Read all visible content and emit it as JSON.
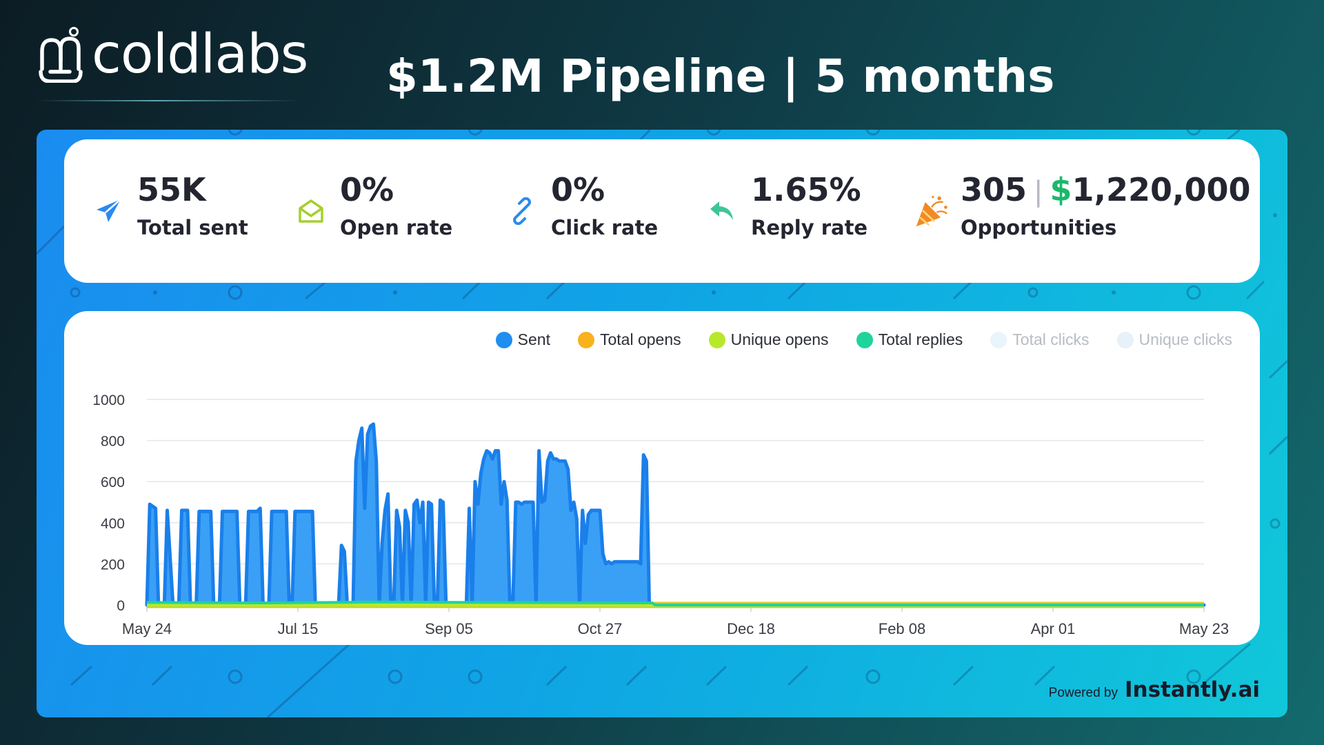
{
  "brand": {
    "name": "coldlabs",
    "icon": "coldlabs-logo-icon"
  },
  "headline": "$1.2M Pipeline | 5 months",
  "stats": [
    {
      "value": "55K",
      "label": "Total sent",
      "icon": "paper-plane-icon",
      "color": "#2a8af0"
    },
    {
      "value": "0%",
      "label": "Open rate",
      "icon": "envelope-open-icon",
      "color": "#a5cf2e"
    },
    {
      "value": "0%",
      "label": "Click rate",
      "icon": "link-icon",
      "color": "#2a8af0"
    },
    {
      "value": "1.65%",
      "label": "Reply rate",
      "icon": "reply-arrow-icon",
      "color": "#3ec59a"
    },
    {
      "value": "305",
      "amount_sign": "$",
      "amount": "1,220,000",
      "label": "Opportunities",
      "icon": "party-popper-icon",
      "color": "#f08a24"
    }
  ],
  "legend": [
    {
      "label": "Sent",
      "color": "#1f8ef1",
      "muted": false
    },
    {
      "label": "Total opens",
      "color": "#f8b21c",
      "muted": false
    },
    {
      "label": "Unique opens",
      "color": "#b8e82a",
      "muted": false
    },
    {
      "label": "Total replies",
      "color": "#1fd49a",
      "muted": false
    },
    {
      "label": "Total clicks",
      "color": "#eaf4fb",
      "muted": true
    },
    {
      "label": "Unique clicks",
      "color": "#e6f1f9",
      "muted": true
    }
  ],
  "chart_data": {
    "type": "area",
    "x_tick_labels": [
      "May 24",
      "Jul 15",
      "Sep 05",
      "Oct 27",
      "Dec 18",
      "Feb 08",
      "Apr 01",
      "May 23"
    ],
    "y_ticks": [
      0,
      200,
      400,
      600,
      800,
      1000
    ],
    "ylim": [
      0,
      1000
    ],
    "x_range_days": [
      0,
      364
    ],
    "grid": true,
    "legend_position": "top-right",
    "series": [
      {
        "name": "Sent",
        "color": "#1f8ef1",
        "points": [
          [
            0,
            0
          ],
          [
            1,
            490
          ],
          [
            3,
            470
          ],
          [
            4,
            0
          ],
          [
            6,
            0
          ],
          [
            7,
            460
          ],
          [
            9,
            0
          ],
          [
            11,
            0
          ],
          [
            12,
            460
          ],
          [
            14,
            460
          ],
          [
            15,
            0
          ],
          [
            17,
            0
          ],
          [
            18,
            455
          ],
          [
            22,
            455
          ],
          [
            23,
            0
          ],
          [
            25,
            0
          ],
          [
            26,
            455
          ],
          [
            31,
            455
          ],
          [
            32,
            0
          ],
          [
            34,
            0
          ],
          [
            35,
            455
          ],
          [
            38,
            455
          ],
          [
            39,
            470
          ],
          [
            40,
            0
          ],
          [
            42,
            0
          ],
          [
            43,
            455
          ],
          [
            48,
            455
          ],
          [
            49,
            0
          ],
          [
            50,
            0
          ],
          [
            51,
            455
          ],
          [
            56,
            455
          ],
          [
            57,
            455
          ],
          [
            58,
            0
          ],
          [
            59,
            0
          ],
          [
            60,
            0
          ],
          [
            61,
            0
          ],
          [
            62,
            0
          ],
          [
            63,
            0
          ],
          [
            64,
            0
          ],
          [
            65,
            0
          ],
          [
            66,
            0
          ],
          [
            67,
            290
          ],
          [
            68,
            260
          ],
          [
            69,
            0
          ],
          [
            70,
            0
          ],
          [
            71,
            0
          ],
          [
            72,
            700
          ],
          [
            73,
            800
          ],
          [
            74,
            860
          ],
          [
            75,
            470
          ],
          [
            76,
            830
          ],
          [
            77,
            870
          ],
          [
            78,
            880
          ],
          [
            79,
            700
          ],
          [
            80,
            0
          ],
          [
            81,
            300
          ],
          [
            82,
            460
          ],
          [
            83,
            540
          ],
          [
            84,
            0
          ],
          [
            85,
            0
          ],
          [
            86,
            460
          ],
          [
            87,
            380
          ],
          [
            88,
            0
          ],
          [
            89,
            460
          ],
          [
            90,
            400
          ],
          [
            91,
            0
          ],
          [
            92,
            490
          ],
          [
            93,
            510
          ],
          [
            94,
            400
          ],
          [
            95,
            500
          ],
          [
            96,
            0
          ],
          [
            97,
            500
          ],
          [
            98,
            490
          ],
          [
            99,
            0
          ],
          [
            100,
            0
          ],
          [
            101,
            510
          ],
          [
            102,
            500
          ],
          [
            103,
            0
          ],
          [
            104,
            0
          ],
          [
            105,
            0
          ],
          [
            106,
            0
          ],
          [
            107,
            0
          ],
          [
            108,
            0
          ],
          [
            109,
            0
          ],
          [
            110,
            0
          ],
          [
            111,
            470
          ],
          [
            112,
            0
          ],
          [
            113,
            600
          ],
          [
            114,
            490
          ],
          [
            115,
            640
          ],
          [
            116,
            710
          ],
          [
            117,
            750
          ],
          [
            118,
            740
          ],
          [
            119,
            710
          ],
          [
            120,
            750
          ],
          [
            121,
            750
          ],
          [
            122,
            490
          ],
          [
            123,
            600
          ],
          [
            124,
            510
          ],
          [
            125,
            0
          ],
          [
            126,
            0
          ],
          [
            127,
            500
          ],
          [
            128,
            500
          ],
          [
            129,
            490
          ],
          [
            130,
            500
          ],
          [
            131,
            500
          ],
          [
            132,
            500
          ],
          [
            133,
            500
          ],
          [
            134,
            0
          ],
          [
            135,
            750
          ],
          [
            136,
            500
          ],
          [
            137,
            510
          ],
          [
            138,
            700
          ],
          [
            139,
            740
          ],
          [
            140,
            710
          ],
          [
            141,
            710
          ],
          [
            142,
            700
          ],
          [
            143,
            700
          ],
          [
            144,
            700
          ],
          [
            145,
            660
          ],
          [
            146,
            460
          ],
          [
            147,
            500
          ],
          [
            148,
            420
          ],
          [
            149,
            0
          ],
          [
            150,
            460
          ],
          [
            151,
            300
          ],
          [
            152,
            440
          ],
          [
            153,
            460
          ],
          [
            154,
            460
          ],
          [
            155,
            460
          ],
          [
            156,
            460
          ],
          [
            157,
            250
          ],
          [
            158,
            200
          ],
          [
            159,
            210
          ],
          [
            160,
            200
          ],
          [
            161,
            210
          ],
          [
            162,
            210
          ],
          [
            163,
            210
          ],
          [
            164,
            210
          ],
          [
            165,
            210
          ],
          [
            166,
            210
          ],
          [
            167,
            210
          ],
          [
            168,
            210
          ],
          [
            169,
            210
          ],
          [
            170,
            200
          ],
          [
            171,
            730
          ],
          [
            172,
            700
          ],
          [
            173,
            0
          ],
          [
            174,
            0
          ],
          [
            364,
            0
          ]
        ]
      },
      {
        "name": "Total opens",
        "color": "#f8b21c",
        "points": [
          [
            0,
            0
          ],
          [
            364,
            0
          ]
        ]
      },
      {
        "name": "Unique opens",
        "color": "#b8e82a",
        "points": [
          [
            0,
            0
          ],
          [
            364,
            0
          ]
        ]
      },
      {
        "name": "Total replies",
        "color": "#1fd49a",
        "points": [
          [
            0,
            12
          ],
          [
            40,
            10
          ],
          [
            80,
            14
          ],
          [
            120,
            12
          ],
          [
            174,
            10
          ],
          [
            175,
            0
          ],
          [
            364,
            0
          ]
        ]
      }
    ]
  },
  "powered_by": {
    "label": "Powered by",
    "brand": "Instantly.ai"
  }
}
